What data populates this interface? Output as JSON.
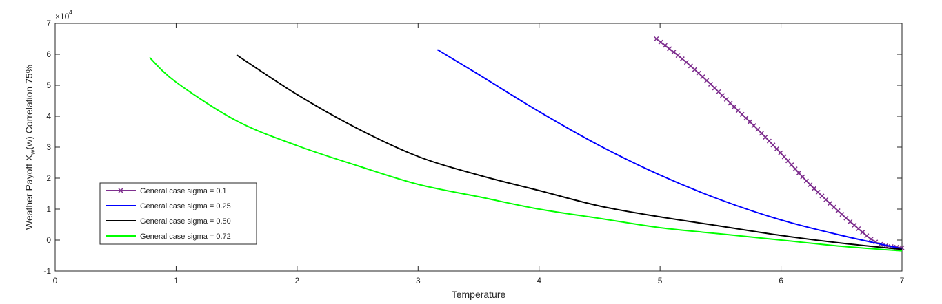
{
  "chart_data": {
    "type": "line",
    "title": "",
    "xlabel": "Temperature",
    "ylabel_main": "Weather Payoff X",
    "ylabel_sub": "w",
    "ylabel_tail": "(w)  Correlation 75%",
    "exponent_base": "×10",
    "exponent_power": "4",
    "xlim": [
      0,
      7
    ],
    "ylim": [
      -1,
      7
    ],
    "xticks": [
      "0",
      "1",
      "2",
      "3",
      "4",
      "5",
      "6",
      "7"
    ],
    "yticks": [
      "-1",
      "0",
      "1",
      "2",
      "3",
      "4",
      "5",
      "6",
      "7"
    ],
    "grid": false,
    "legend_position": "lower-left",
    "series": [
      {
        "name": "General case sigma = 0.1",
        "color": "#7e2f8e",
        "marker": "x",
        "x": [
          4.97,
          5.2,
          5.4,
          5.6,
          5.8,
          6.0,
          6.2,
          6.4,
          6.6,
          6.8,
          7.0
        ],
        "y": [
          6.5,
          5.8,
          5.1,
          4.35,
          3.6,
          2.8,
          1.95,
          1.2,
          0.5,
          -0.1,
          -0.25
        ]
      },
      {
        "name": "General case sigma = 0.25",
        "color": "#0000ff",
        "marker": "",
        "x": [
          3.16,
          3.5,
          4.0,
          4.5,
          5.0,
          5.5,
          6.0,
          6.5,
          7.0
        ],
        "y": [
          6.15,
          5.35,
          4.15,
          3.05,
          2.1,
          1.3,
          0.65,
          0.15,
          -0.28
        ]
      },
      {
        "name": "General case sigma = 0.50",
        "color": "#000000",
        "marker": "",
        "x": [
          1.5,
          2.0,
          2.5,
          3.0,
          3.5,
          4.0,
          4.5,
          5.0,
          5.5,
          6.0,
          6.5,
          7.0
        ],
        "y": [
          5.98,
          4.7,
          3.6,
          2.7,
          2.1,
          1.6,
          1.1,
          0.75,
          0.45,
          0.15,
          -0.1,
          -0.3
        ]
      },
      {
        "name": "General case sigma = 0.72",
        "color": "#00ff00",
        "marker": "",
        "x": [
          0.78,
          1.0,
          1.5,
          2.0,
          2.5,
          3.0,
          3.5,
          4.0,
          4.5,
          5.0,
          5.5,
          6.0,
          6.5,
          7.0
        ],
        "y": [
          5.9,
          5.1,
          3.85,
          3.05,
          2.4,
          1.8,
          1.4,
          1.0,
          0.7,
          0.4,
          0.2,
          0.0,
          -0.2,
          -0.35
        ]
      }
    ]
  }
}
